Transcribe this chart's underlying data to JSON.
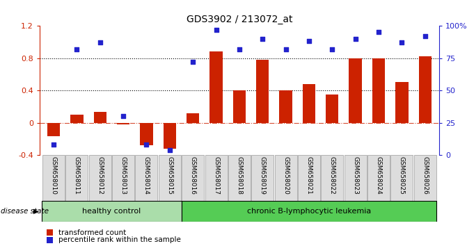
{
  "title": "GDS3902 / 213072_at",
  "samples": [
    "GSM658010",
    "GSM658011",
    "GSM658012",
    "GSM658013",
    "GSM658014",
    "GSM658015",
    "GSM658016",
    "GSM658017",
    "GSM658018",
    "GSM658019",
    "GSM658020",
    "GSM658021",
    "GSM658022",
    "GSM658023",
    "GSM658024",
    "GSM658025",
    "GSM658026"
  ],
  "bar_values": [
    -0.17,
    0.1,
    0.13,
    -0.02,
    -0.28,
    -0.32,
    0.12,
    0.88,
    0.4,
    0.78,
    0.4,
    0.48,
    0.35,
    0.8,
    0.8,
    0.5,
    0.82
  ],
  "dot_values_pct": [
    8,
    82,
    87,
    30,
    8,
    4,
    72,
    97,
    82,
    90,
    82,
    88,
    82,
    90,
    95,
    87,
    92
  ],
  "bar_color": "#cc2200",
  "dot_color": "#2222cc",
  "left_ylim": [
    -0.4,
    1.2
  ],
  "right_ylim": [
    0,
    100
  ],
  "left_yticks": [
    -0.4,
    0.0,
    0.4,
    0.8,
    1.2
  ],
  "right_yticks": [
    0,
    25,
    50,
    75,
    100
  ],
  "right_yticklabels": [
    "0",
    "25",
    "50",
    "75",
    "100%"
  ],
  "hlines_dotted": [
    0.4,
    0.8
  ],
  "zero_line_value": 0.0,
  "healthy_control_count": 6,
  "healthy_bg": "#aaddaa",
  "leukemia_bg": "#55cc55",
  "healthy_label": "healthy control",
  "leukemia_label": "chronic B-lymphocytic leukemia",
  "disease_state_label": "disease state",
  "legend_bar_label": "transformed count",
  "legend_dot_label": "percentile rank within the sample",
  "bar_width": 0.55,
  "tick_label_rotation": 270,
  "title_fontsize": 10,
  "axis_fontsize": 8,
  "label_fontsize": 8,
  "sample_box_bg": "#dddddd",
  "sample_box_border": "#aaaaaa"
}
